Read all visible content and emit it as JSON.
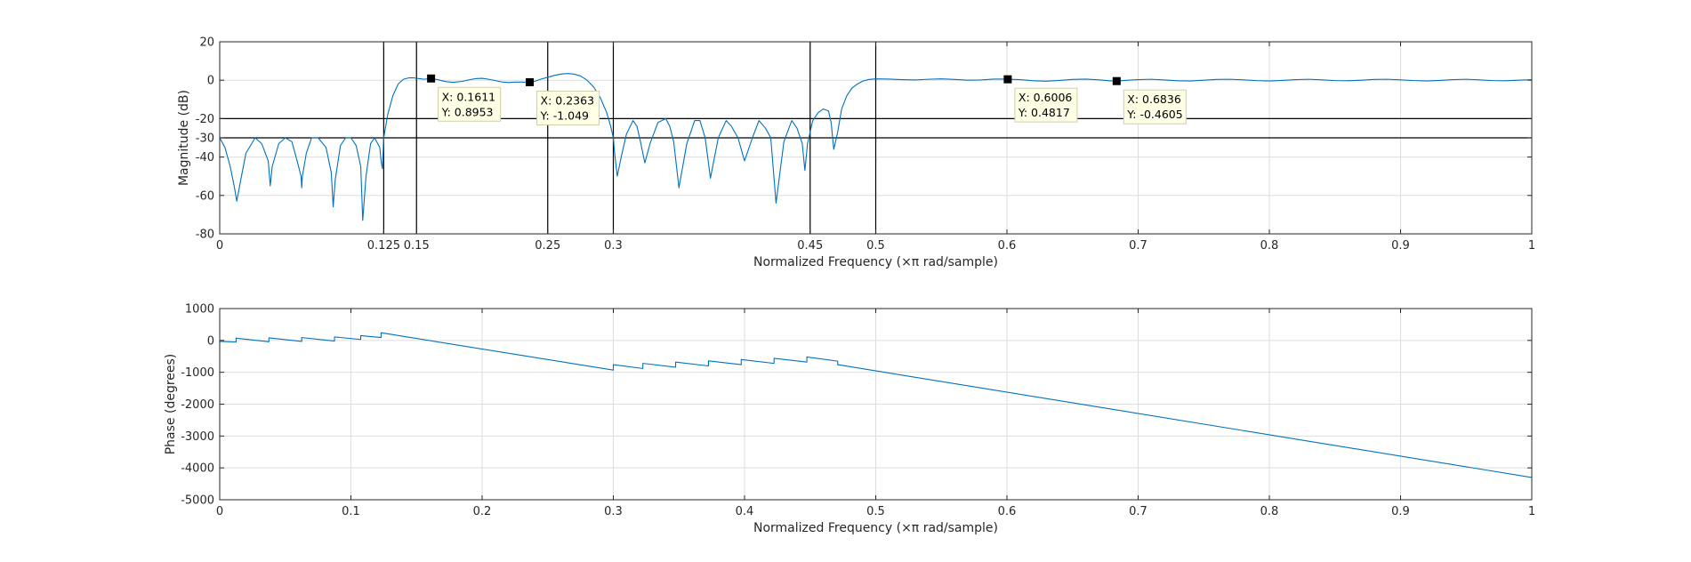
{
  "chart_data": [
    {
      "type": "line",
      "id": "magnitude",
      "xlabel": "Normalized Frequency  (×π rad/sample)",
      "ylabel": "Magnitude (dB)",
      "xlim": [
        0,
        1
      ],
      "ylim": [
        -80,
        20
      ],
      "xticks": [
        0,
        0.125,
        0.15,
        0.25,
        0.3,
        0.45,
        0.5,
        0.6,
        0.7,
        0.8,
        0.9,
        1
      ],
      "xtick_labels": [
        "0",
        "0.125",
        "0.15",
        "0.25",
        "0.3",
        "0.45",
        "0.5",
        "0.6",
        "0.7",
        "0.8",
        "0.9",
        "1"
      ],
      "yticks": [
        20,
        0,
        -20,
        -30,
        -40,
        -60,
        -80
      ],
      "ytick_labels": [
        "20",
        "0",
        "-20",
        "-30",
        "-40",
        "-60",
        "-80"
      ],
      "grid": true,
      "line_color": "#0072BD",
      "reference_lines": {
        "vertical": [
          0.125,
          0.15,
          0.25,
          0.3,
          0.45,
          0.5
        ],
        "horizontal": [
          -20,
          -30
        ]
      },
      "series": [
        {
          "x": [
            0,
            0.004,
            0.008,
            0.011,
            0.013,
            0.016,
            0.02,
            0.027,
            0.032,
            0.037,
            0.0385,
            0.04,
            0.045,
            0.05,
            0.055,
            0.059,
            0.062,
            0.0625,
            0.063,
            0.066,
            0.07,
            0.075,
            0.081,
            0.085,
            0.0865,
            0.088,
            0.092,
            0.096,
            0.1,
            0.104,
            0.1075,
            0.109,
            0.1115,
            0.115,
            0.118,
            0.122,
            0.123,
            0.124,
            0.125,
            0.128,
            0.132,
            0.136,
            0.14,
            0.144,
            0.148,
            0.152,
            0.156,
            0.16,
            0.1611,
            0.166,
            0.172,
            0.178,
            0.185,
            0.19,
            0.195,
            0.2,
            0.205,
            0.21,
            0.215,
            0.22,
            0.225,
            0.23,
            0.2363,
            0.24,
            0.245,
            0.25,
            0.255,
            0.26,
            0.265,
            0.27,
            0.275,
            0.28,
            0.285,
            0.29,
            0.295,
            0.298,
            0.3,
            0.301,
            0.303,
            0.306,
            0.31,
            0.315,
            0.318,
            0.321,
            0.324,
            0.328,
            0.334,
            0.34,
            0.343,
            0.346,
            0.35,
            0.356,
            0.362,
            0.366,
            0.37,
            0.374,
            0.38,
            0.386,
            0.39,
            0.395,
            0.4,
            0.406,
            0.411,
            0.416,
            0.42,
            0.424,
            0.43,
            0.436,
            0.44,
            0.444,
            0.446,
            0.448,
            0.452,
            0.456,
            0.46,
            0.464,
            0.466,
            0.468,
            0.471,
            0.474,
            0.478,
            0.482,
            0.486,
            0.49,
            0.495,
            0.5,
            0.51,
            0.52,
            0.53,
            0.54,
            0.55,
            0.56,
            0.57,
            0.58,
            0.59,
            0.6,
            0.6006,
            0.61,
            0.62,
            0.63,
            0.64,
            0.65,
            0.66,
            0.67,
            0.68,
            0.6836,
            0.69,
            0.7,
            0.71,
            0.72,
            0.73,
            0.74,
            0.75,
            0.76,
            0.77,
            0.78,
            0.79,
            0.8,
            0.81,
            0.82,
            0.83,
            0.84,
            0.85,
            0.86,
            0.87,
            0.88,
            0.89,
            0.9,
            0.91,
            0.92,
            0.93,
            0.94,
            0.95,
            0.96,
            0.97,
            0.98,
            0.99,
            1
          ],
          "y": [
            -30,
            -35,
            -45,
            -55,
            -63,
            -52,
            -38,
            -30,
            -33,
            -42,
            -55,
            -45,
            -33,
            -30,
            -32,
            -42,
            -50,
            -56,
            -50,
            -38,
            -30,
            -30,
            -35,
            -48,
            -66,
            -52,
            -34,
            -30,
            -30,
            -34,
            -45,
            -73,
            -50,
            -33,
            -30,
            -35,
            -42,
            -46,
            -30,
            -18,
            -8,
            -2,
            0.5,
            1.2,
            1.2,
            0.8,
            0.5,
            0.9,
            0.9,
            0.3,
            -0.7,
            -1.1,
            -0.6,
            0.2,
            0.8,
            1.0,
            0.5,
            -0.2,
            -0.9,
            -1.2,
            -1.0,
            -1.0,
            -1.05,
            -0.6,
            0.6,
            1.5,
            2.5,
            3.2,
            3.5,
            3.2,
            2.2,
            0.0,
            -3.5,
            -9,
            -17,
            -24,
            -30,
            -38,
            -50,
            -40,
            -28,
            -21,
            -24,
            -33,
            -43,
            -33,
            -22,
            -20,
            -24,
            -32,
            -56,
            -33,
            -21,
            -21,
            -30,
            -51,
            -30,
            -21,
            -24,
            -30,
            -42,
            -30,
            -21,
            -25,
            -30,
            -64,
            -32,
            -21,
            -25,
            -33,
            -47,
            -33,
            -21,
            -17,
            -15,
            -16,
            -22,
            -36,
            -27,
            -15,
            -8,
            -4,
            -2,
            -0.5,
            0.4,
            0.7,
            0.6,
            0.3,
            0.1,
            0.5,
            0.7,
            0.4,
            0.0,
            0.1,
            0.6,
            0.6,
            0.48,
            0.3,
            -0.3,
            -0.5,
            -0.1,
            0.4,
            0.6,
            0.2,
            -0.4,
            -0.46,
            -0.1,
            0.3,
            0.5,
            0.1,
            -0.3,
            -0.4,
            0.0,
            0.4,
            0.5,
            0.2,
            -0.2,
            -0.4,
            -0.1,
            0.3,
            0.5,
            0.2,
            -0.2,
            -0.3,
            0.0,
            0.4,
            0.5,
            0.2,
            -0.2,
            -0.4,
            -0.1,
            0.3,
            0.5,
            0.2,
            -0.2,
            -0.3,
            0.0,
            0.3
          ]
        }
      ],
      "datatips": [
        {
          "x": 0.1611,
          "y": 0.8953,
          "x_label": "X: 0.1611",
          "y_label": "Y: 0.8953"
        },
        {
          "x": 0.2363,
          "y": -1.049,
          "x_label": "X: 0.2363",
          "y_label": "Y: -1.049"
        },
        {
          "x": 0.6006,
          "y": 0.4817,
          "x_label": "X: 0.6006",
          "y_label": "Y: 0.4817"
        },
        {
          "x": 0.6836,
          "y": -0.4605,
          "x_label": "X: 0.6836",
          "y_label": "Y: -0.4605"
        }
      ]
    },
    {
      "type": "line",
      "id": "phase",
      "xlabel": "Normalized Frequency  (×π rad/sample)",
      "ylabel": "Phase (degrees)",
      "xlim": [
        0,
        1
      ],
      "ylim": [
        -5000,
        1000
      ],
      "xticks": [
        0,
        0.1,
        0.2,
        0.3,
        0.4,
        0.5,
        0.6,
        0.7,
        0.8,
        0.9,
        1
      ],
      "xtick_labels": [
        "0",
        "0.1",
        "0.2",
        "0.3",
        "0.4",
        "0.5",
        "0.6",
        "0.7",
        "0.8",
        "0.9",
        "1"
      ],
      "yticks": [
        1000,
        0,
        -1000,
        -2000,
        -3000,
        -4000,
        -5000
      ],
      "ytick_labels": [
        "1000",
        "0",
        "-1000",
        "-2000",
        "-3000",
        "-4000",
        "-5000"
      ],
      "grid": true,
      "line_color": "#0072BD",
      "series": [
        {
          "x": [
            0,
            0.0125,
            0.0125,
            0.0375,
            0.0375,
            0.0625,
            0.0625,
            0.0875,
            0.0875,
            0.1075,
            0.1075,
            0.123,
            0.123,
            0.3,
            0.3,
            0.3225,
            0.3225,
            0.3475,
            0.3475,
            0.3725,
            0.3725,
            0.3975,
            0.3975,
            0.4225,
            0.4225,
            0.4475,
            0.4475,
            0.471,
            0.471,
            1
          ],
          "y": [
            -30,
            -50,
            70,
            -40,
            80,
            -30,
            90,
            -20,
            110,
            30,
            150,
            90,
            240,
            -930,
            -760,
            -880,
            -720,
            -840,
            -680,
            -800,
            -640,
            -760,
            -600,
            -720,
            -560,
            -680,
            -520,
            -650,
            -760,
            -4300
          ]
        }
      ]
    }
  ]
}
